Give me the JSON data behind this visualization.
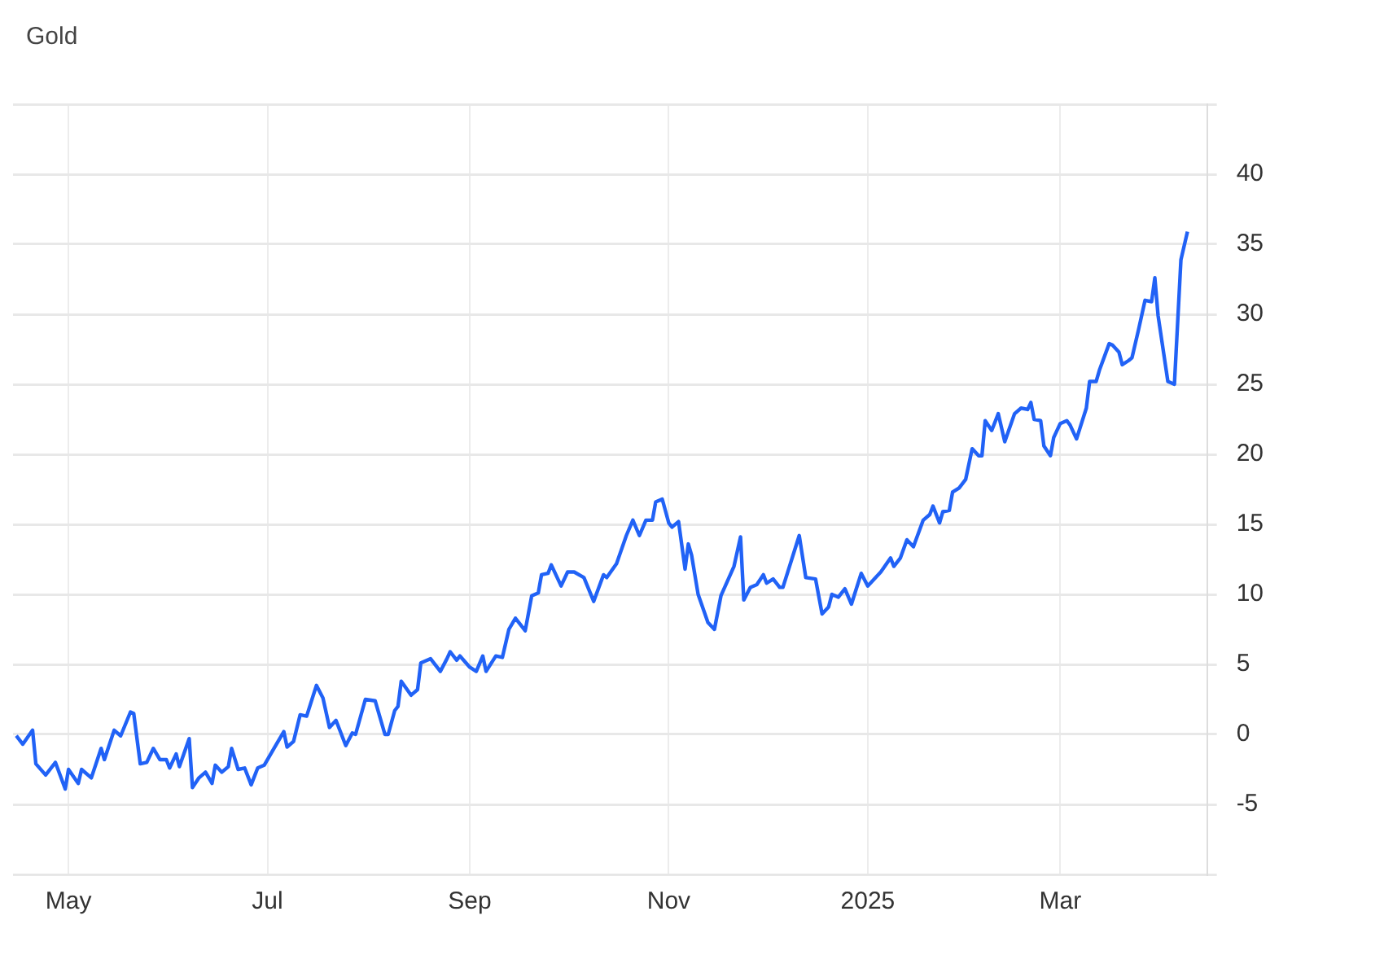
{
  "chart_data": {
    "type": "line",
    "title": "Gold",
    "x": [
      "2024-04-15",
      "2024-04-17",
      "2024-04-20",
      "2024-04-21",
      "2024-04-24",
      "2024-04-27",
      "2024-04-30",
      "2024-05-01",
      "2024-05-04",
      "2024-05-05",
      "2024-05-08",
      "2024-05-11",
      "2024-05-12",
      "2024-05-15",
      "2024-05-17",
      "2024-05-20",
      "2024-05-21",
      "2024-05-23",
      "2024-05-25",
      "2024-05-27",
      "2024-05-29",
      "2024-05-31",
      "2024-06-01",
      "2024-06-03",
      "2024-06-04",
      "2024-06-07",
      "2024-06-08",
      "2024-06-10",
      "2024-06-12",
      "2024-06-14",
      "2024-06-15",
      "2024-06-17",
      "2024-06-19",
      "2024-06-20",
      "2024-06-22",
      "2024-06-24",
      "2024-06-26",
      "2024-06-28",
      "2024-06-30",
      "2024-07-03",
      "2024-07-06",
      "2024-07-07",
      "2024-07-09",
      "2024-07-11",
      "2024-07-13",
      "2024-07-16",
      "2024-07-18",
      "2024-07-20",
      "2024-07-22",
      "2024-07-25",
      "2024-07-27",
      "2024-07-28",
      "2024-07-31",
      "2024-08-03",
      "2024-08-06",
      "2024-08-07",
      "2024-08-09",
      "2024-08-10",
      "2024-08-11",
      "2024-08-14",
      "2024-08-16",
      "2024-08-17",
      "2024-08-19",
      "2024-08-20",
      "2024-08-23",
      "2024-08-25",
      "2024-08-26",
      "2024-08-28",
      "2024-08-29",
      "2024-09-01",
      "2024-09-03",
      "2024-09-05",
      "2024-09-06",
      "2024-09-09",
      "2024-09-11",
      "2024-09-13",
      "2024-09-15",
      "2024-09-18",
      "2024-09-20",
      "2024-09-22",
      "2024-09-23",
      "2024-09-25",
      "2024-09-26",
      "2024-09-29",
      "2024-10-01",
      "2024-10-03",
      "2024-10-06",
      "2024-10-09",
      "2024-10-12",
      "2024-10-13",
      "2024-10-16",
      "2024-10-19",
      "2024-10-21",
      "2024-10-23",
      "2024-10-25",
      "2024-10-27",
      "2024-10-28",
      "2024-10-30",
      "2024-11-01",
      "2024-11-02",
      "2024-11-04",
      "2024-11-06",
      "2024-11-07",
      "2024-11-08",
      "2024-11-10",
      "2024-11-13",
      "2024-11-15",
      "2024-11-17",
      "2024-11-21",
      "2024-11-23",
      "2024-11-24",
      "2024-11-26",
      "2024-11-28",
      "2024-11-30",
      "2024-12-01",
      "2024-12-03",
      "2024-12-05",
      "2024-12-06",
      "2024-12-11",
      "2024-12-13",
      "2024-12-16",
      "2024-12-18",
      "2024-12-20",
      "2024-12-21",
      "2024-12-23",
      "2024-12-25",
      "2024-12-27",
      "2024-12-30",
      "2025-01-01",
      "2025-01-05",
      "2025-01-08",
      "2025-01-09",
      "2025-01-11",
      "2025-01-13",
      "2025-01-15",
      "2025-01-18",
      "2025-01-20",
      "2025-01-21",
      "2025-01-23",
      "2025-01-24",
      "2025-01-26",
      "2025-01-27",
      "2025-01-29",
      "2025-01-31",
      "2025-02-02",
      "2025-02-04",
      "2025-02-05",
      "2025-02-06",
      "2025-02-08",
      "2025-02-10",
      "2025-02-12",
      "2025-02-15",
      "2025-02-17",
      "2025-02-19",
      "2025-02-20",
      "2025-02-21",
      "2025-02-23",
      "2025-02-24",
      "2025-02-26",
      "2025-02-27",
      "2025-03-01",
      "2025-03-03",
      "2025-03-04",
      "2025-03-06",
      "2025-03-09",
      "2025-03-10",
      "2025-03-12",
      "2025-03-13",
      "2025-03-16",
      "2025-03-17",
      "2025-03-19",
      "2025-03-20",
      "2025-03-22",
      "2025-03-23",
      "2025-03-25",
      "2025-03-27",
      "2025-03-29",
      "2025-03-30",
      "2025-03-31",
      "2025-04-03",
      "2025-04-05",
      "2025-04-07",
      "2025-04-09"
    ],
    "series": [
      {
        "color": "#2162f6",
        "values": [
          -0.1,
          -0.7,
          0.3,
          -2.1,
          -2.9,
          -2,
          -3.9,
          -2.5,
          -3.5,
          -2.5,
          -3.1,
          -1,
          -1.8,
          0.3,
          -0.1,
          1.6,
          1.5,
          -2.1,
          -2,
          -1,
          -1.8,
          -1.8,
          -2.4,
          -1.4,
          -2.3,
          -0.3,
          -3.8,
          -3.1,
          -2.7,
          -3.5,
          -2.2,
          -2.7,
          -2.3,
          -1,
          -2.5,
          -2.4,
          -3.6,
          -2.4,
          -2.2,
          -1,
          0.2,
          -0.9,
          -0.5,
          1.4,
          1.3,
          3.5,
          2.6,
          0.5,
          1,
          -0.8,
          0.1,
          0,
          2.5,
          2.4,
          0,
          0,
          1.7,
          2,
          3.8,
          2.8,
          3.2,
          5.1,
          5.3,
          5.4,
          4.5,
          5.4,
          5.9,
          5.3,
          5.6,
          4.8,
          4.5,
          5.6,
          4.5,
          5.6,
          5.5,
          7.5,
          8.3,
          7.4,
          9.9,
          10.1,
          11.4,
          11.5,
          12.1,
          10.6,
          11.6,
          11.6,
          11.2,
          9.5,
          11.4,
          11.2,
          12.2,
          14.2,
          15.3,
          14.2,
          15.3,
          15.3,
          16.6,
          16.8,
          15.1,
          14.8,
          15.2,
          11.8,
          13.6,
          12.8,
          10,
          8,
          7.5,
          9.9,
          12,
          14.1,
          9.6,
          10.5,
          10.7,
          11.4,
          10.8,
          11.1,
          10.5,
          10.5,
          14.2,
          11.2,
          11.1,
          8.6,
          9.1,
          10,
          9.8,
          10.4,
          9.3,
          11.5,
          10.6,
          11.6,
          12.6,
          12,
          12.6,
          13.9,
          13.4,
          15.3,
          15.7,
          16.3,
          15.1,
          15.9,
          16,
          17.3,
          17.6,
          18.2,
          20.4,
          19.9,
          19.9,
          22.4,
          21.7,
          22.9,
          20.9,
          22.9,
          23.3,
          23.2,
          23.7,
          22.5,
          22.4,
          20.6,
          19.9,
          21.2,
          22.2,
          22.4,
          22.1,
          21.1,
          23.3,
          25.2,
          25.2,
          26,
          27.9,
          27.8,
          27.3,
          26.4,
          26.7,
          26.9,
          28.9,
          31,
          30.9,
          32.6,
          29.9,
          25.2,
          25,
          33.9,
          35.9
        ]
      }
    ],
    "xlim": [
      "2024-04-14",
      "2025-04-15"
    ],
    "xticks": [
      {
        "value": "2024-05-01",
        "label": "May"
      },
      {
        "value": "2024-07-01",
        "label": "Jul"
      },
      {
        "value": "2024-09-01",
        "label": "Sep"
      },
      {
        "value": "2024-11-01",
        "label": "Nov"
      },
      {
        "value": "2025-01-01",
        "label": "2025"
      },
      {
        "value": "2025-03-01",
        "label": "Mar"
      }
    ],
    "ylim": [
      -10,
      45
    ],
    "yticks": [
      {
        "value": -10,
        "label": null
      },
      -5,
      0,
      5,
      10,
      15,
      20,
      25,
      30,
      35,
      40,
      {
        "value": 45,
        "label": null
      }
    ],
    "grid": true,
    "marker": "none",
    "line_style": "solid"
  }
}
